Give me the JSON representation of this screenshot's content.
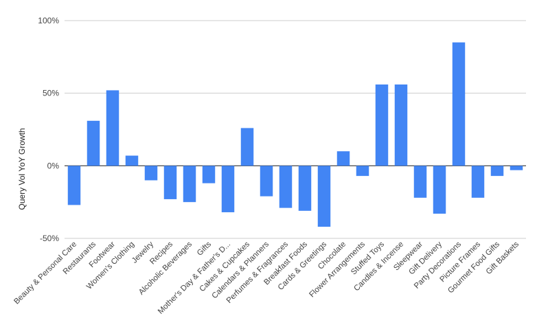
{
  "chart_data": {
    "type": "bar",
    "ylabel": "Query Vol YoY Growth",
    "xlabel": "",
    "title": "",
    "ylim": [
      -50,
      100
    ],
    "y_ticks": [
      -50,
      0,
      50,
      100
    ],
    "y_tick_labels": [
      "-50%",
      "0%",
      "50%",
      "100%"
    ],
    "grid": true,
    "bar_color": "#4285F4",
    "categories": [
      "Beauty & Personal Care",
      "Restaurants",
      "Footwear",
      "Women's Clothing",
      "Jewelry",
      "Recipes",
      "Alcoholic Beverages",
      "Gifts",
      "Mother's Day & Father's D...",
      "Cakes & Cupcakes",
      "Calendars & Planners",
      "Perfumes & Fragrances",
      "Breakfast Foods",
      "Cards & Greetings",
      "Chocolate",
      "Flower Arrangements",
      "Stuffed Toys",
      "Candles & Incense",
      "Sleepwear",
      "Gift Delivery",
      "Party Decorations",
      "Picture Frames",
      "Gourmet Food Gifts",
      "Gift Baskets"
    ],
    "values": [
      -27,
      31,
      52,
      7,
      -10,
      -23,
      -25,
      -12,
      -32,
      26,
      -21,
      -29,
      -31,
      -42,
      10,
      -7,
      56,
      56,
      -22,
      -33,
      85,
      -22,
      -7,
      -3
    ]
  }
}
